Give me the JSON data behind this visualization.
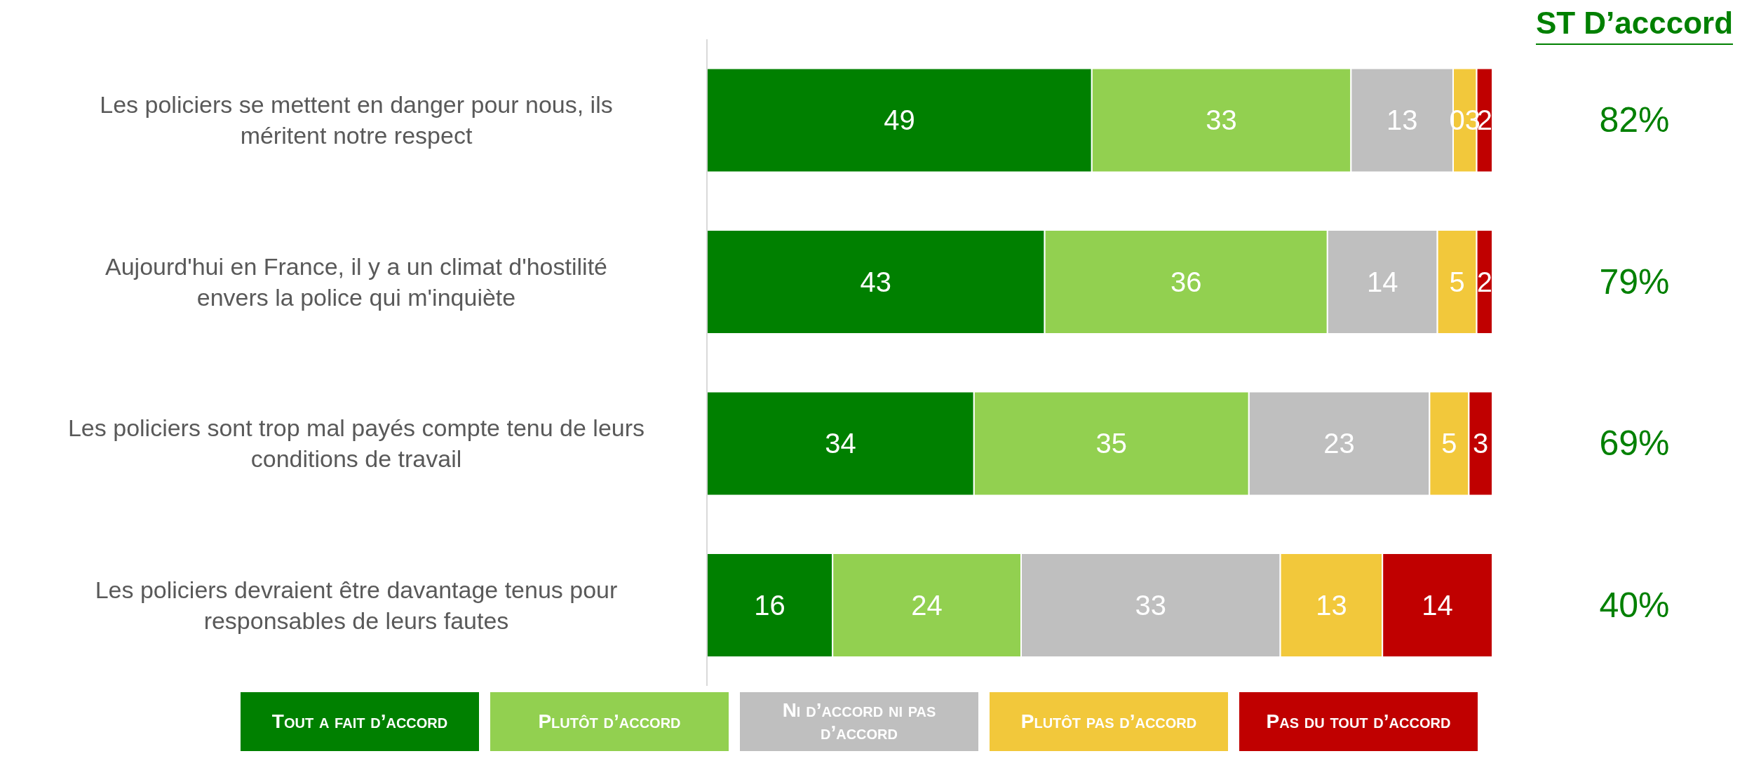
{
  "chart_data": {
    "type": "bar",
    "orientation": "horizontal",
    "stacked": true,
    "legend": "bottom",
    "categories": [
      "Les policiers se mettent en danger pour nous, ils méritent notre respect",
      "Aujourd'hui en France, il y a un climat d'hostilité envers la police qui m'inquiète",
      "Les policiers sont trop mal payés compte tenu de leurs conditions de travail",
      "Les policiers devraient être davantage tenus pour responsables de leurs fautes"
    ],
    "series": [
      {
        "name": "Tout a fait d’accord",
        "color": "#008000",
        "values": [
          49,
          43,
          34,
          16
        ]
      },
      {
        "name": "Plutôt d’accord",
        "color": "#92d050",
        "values": [
          33,
          36,
          35,
          24
        ]
      },
      {
        "name": "Ni d’accord ni pas d’accord",
        "color": "#bfbfbf",
        "values": [
          13,
          14,
          23,
          33
        ]
      },
      {
        "name": "Plutôt pas d’accord",
        "color": "#f2c83b",
        "values": [
          3,
          5,
          5,
          13
        ],
        "value_labels": [
          "03",
          "5",
          "5",
          "13"
        ]
      },
      {
        "name": "Pas du tout d’accord",
        "color": "#c00000",
        "values": [
          2,
          2,
          3,
          14
        ]
      }
    ],
    "data_labels": true,
    "annotations": [
      "ST D’acccord",
      "82%",
      "79%",
      "69%",
      "40%"
    ]
  }
}
